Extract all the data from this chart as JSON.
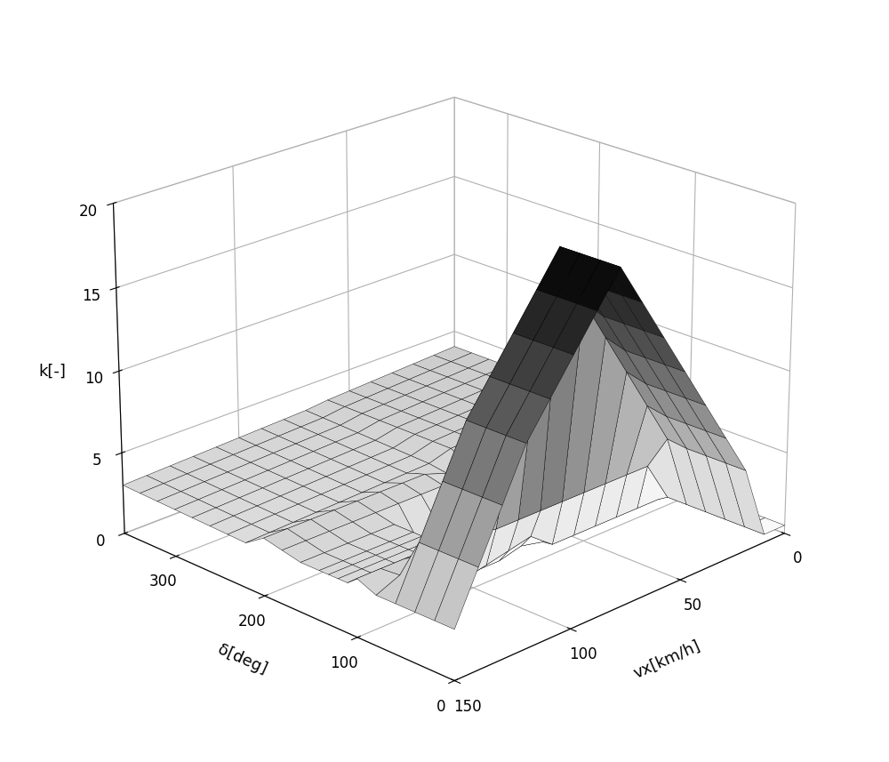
{
  "xlabel": "vx[km/h]",
  "ylabel": "δ[deg]",
  "zlabel": "k[-]",
  "xlim": [
    0,
    150
  ],
  "ylim": [
    0,
    360
  ],
  "zlim": [
    0,
    20
  ],
  "xticks": [
    0,
    50,
    100,
    150
  ],
  "yticks": [
    0,
    100,
    200,
    300
  ],
  "zticks": [
    0,
    5,
    10,
    15,
    20
  ],
  "background_color": "#ffffff",
  "elev": 22,
  "azim": 225
}
